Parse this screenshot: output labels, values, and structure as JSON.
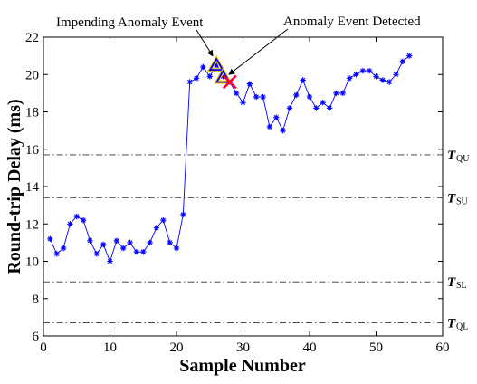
{
  "chart_data": {
    "type": "line",
    "title": "",
    "xlabel": "Sample Number",
    "ylabel": "Round-trip Delay (ms)",
    "xlim": [
      0,
      60
    ],
    "ylim": [
      6,
      22
    ],
    "xticks": [
      0,
      10,
      20,
      30,
      40,
      50,
      60
    ],
    "yticks": [
      6,
      8,
      10,
      12,
      14,
      16,
      18,
      20,
      22
    ],
    "grid": false,
    "series": [
      {
        "color": "#0000ff",
        "marker": "asterisk",
        "x": [
          1,
          2,
          3,
          4,
          5,
          6,
          7,
          8,
          9,
          10,
          11,
          12,
          13,
          14,
          15,
          16,
          17,
          18,
          19,
          20,
          21,
          22,
          23,
          24,
          25,
          26,
          27,
          28,
          29,
          30,
          31,
          32,
          33,
          34,
          35,
          36,
          37,
          38,
          39,
          40,
          41,
          42,
          43,
          44,
          45,
          46,
          47,
          48,
          49,
          50,
          51,
          52,
          53,
          54,
          55
        ],
        "y": [
          11.2,
          10.4,
          10.7,
          12.0,
          12.4,
          12.2,
          11.1,
          10.4,
          10.9,
          10.0,
          11.1,
          10.7,
          11.0,
          10.5,
          10.5,
          11.0,
          11.8,
          12.2,
          11.0,
          10.7,
          12.5,
          19.6,
          19.8,
          20.4,
          19.9,
          20.5,
          19.9,
          19.6,
          19.0,
          18.5,
          19.5,
          18.8,
          18.8,
          17.2,
          17.7,
          17.0,
          18.2,
          18.9,
          19.7,
          18.8,
          18.2,
          18.5,
          18.2,
          19.0,
          19.0,
          19.8,
          20.0,
          20.2,
          20.2,
          19.9,
          19.7,
          19.6,
          20.0,
          20.7,
          21.0
        ]
      }
    ],
    "thresholds": [
      {
        "label": "T",
        "sub": "QU",
        "value": 15.7
      },
      {
        "label": "T",
        "sub": "SU",
        "value": 13.4
      },
      {
        "label": "T",
        "sub": "SL",
        "value": 8.9
      },
      {
        "label": "T",
        "sub": "QL",
        "value": 6.7
      }
    ],
    "markers": [
      {
        "kind": "triangle",
        "x": 26,
        "y": 20.5,
        "color": "#0000ff",
        "stroke": "#ffcc00"
      },
      {
        "kind": "triangle",
        "x": 27,
        "y": 19.85,
        "color": "#0000ff",
        "stroke": "#ffcc00"
      },
      {
        "kind": "cross",
        "x": 28,
        "y": 19.6,
        "color": "#ff0033"
      }
    ],
    "annotations": [
      {
        "text": "Impending Anomaly Event",
        "target_x": 26,
        "target_y": 20.6
      },
      {
        "text": "Anomaly Event Detected",
        "target_x": 27.6,
        "target_y": 19.8
      }
    ]
  }
}
